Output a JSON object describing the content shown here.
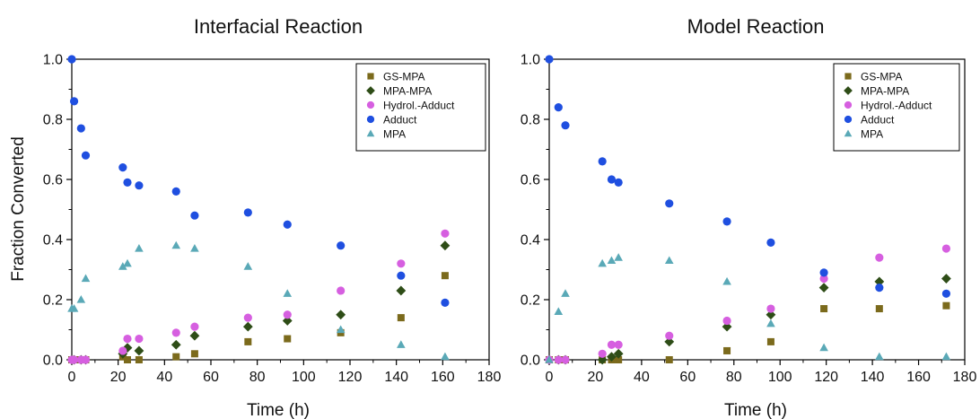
{
  "shared": {
    "ylabel": "Fraction Converted"
  },
  "chart_data": [
    {
      "type": "scatter",
      "title": "Interfacial Reaction",
      "xlabel": "Time (h)",
      "ylabel": "Fraction Converted",
      "xlim": [
        0,
        180
      ],
      "ylim": [
        0,
        1.0
      ],
      "xticks": [
        "0",
        "20",
        "40",
        "60",
        "80",
        "100",
        "120",
        "140",
        "160",
        "180"
      ],
      "yticks": [
        "0.0",
        "0.2",
        "0.4",
        "0.6",
        "0.8",
        "1.0"
      ],
      "grid": false,
      "legend": "top-right",
      "series": [
        {
          "name": "GS-MPA",
          "marker": "square",
          "color": "#7b6a1c",
          "x": [
            0,
            1,
            4,
            6,
            22,
            24,
            29,
            45,
            53,
            76,
            93,
            116,
            142,
            161
          ],
          "y": [
            0,
            0,
            0,
            0,
            0.01,
            0.0,
            0.0,
            0.01,
            0.02,
            0.06,
            0.07,
            0.09,
            0.14,
            0.28
          ]
        },
        {
          "name": "MPA-MPA",
          "marker": "diamond",
          "color": "#2e4d17",
          "x": [
            0,
            1,
            4,
            6,
            22,
            24,
            29,
            45,
            53,
            76,
            93,
            116,
            142,
            161
          ],
          "y": [
            0,
            0,
            0,
            0,
            0.02,
            0.04,
            0.03,
            0.05,
            0.08,
            0.11,
            0.13,
            0.15,
            0.23,
            0.38
          ]
        },
        {
          "name": "Hydrol.-Adduct",
          "marker": "circle",
          "color": "#d65fe0",
          "x": [
            0,
            1,
            4,
            6,
            22,
            24,
            29,
            45,
            53,
            76,
            93,
            116,
            142,
            161
          ],
          "y": [
            0,
            0,
            0,
            0,
            0.03,
            0.07,
            0.07,
            0.09,
            0.11,
            0.14,
            0.15,
            0.23,
            0.32,
            0.42
          ]
        },
        {
          "name": "Adduct",
          "marker": "circle",
          "color": "#1f4fe0",
          "x": [
            0,
            1,
            4,
            6,
            22,
            24,
            29,
            45,
            53,
            76,
            93,
            116,
            142,
            161
          ],
          "y": [
            1.0,
            0.86,
            0.77,
            0.68,
            0.64,
            0.59,
            0.58,
            0.56,
            0.48,
            0.49,
            0.45,
            0.38,
            0.28,
            0.19
          ]
        },
        {
          "name": "MPA",
          "marker": "triangle",
          "color": "#5aa9b7",
          "x": [
            0,
            1,
            4,
            6,
            22,
            24,
            29,
            45,
            53,
            76,
            93,
            116,
            142,
            161
          ],
          "y": [
            0.17,
            0.17,
            0.2,
            0.27,
            0.31,
            0.32,
            0.37,
            0.38,
            0.37,
            0.31,
            0.22,
            0.1,
            0.05,
            0.01
          ]
        }
      ]
    },
    {
      "type": "scatter",
      "title": "Model Reaction",
      "xlabel": "Time (h)",
      "ylabel": "",
      "xlim": [
        0,
        180
      ],
      "ylim": [
        0,
        1.0
      ],
      "xticks": [
        "0",
        "20",
        "40",
        "60",
        "80",
        "100",
        "120",
        "140",
        "160",
        "180"
      ],
      "yticks": [
        "0.0",
        "0.2",
        "0.4",
        "0.6",
        "0.8",
        "1.0"
      ],
      "grid": false,
      "legend": "top-right",
      "series": [
        {
          "name": "GS-MPA",
          "marker": "square",
          "color": "#7b6a1c",
          "x": [
            0,
            4,
            7,
            23,
            27,
            30,
            52,
            77,
            96,
            119,
            143,
            172
          ],
          "y": [
            0,
            0,
            0,
            0,
            0,
            0,
            0,
            0.03,
            0.06,
            0.17,
            0.17,
            0.18
          ]
        },
        {
          "name": "MPA-MPA",
          "marker": "diamond",
          "color": "#2e4d17",
          "x": [
            0,
            4,
            7,
            23,
            27,
            30,
            52,
            77,
            96,
            119,
            143,
            172
          ],
          "y": [
            0,
            0,
            0,
            0.0,
            0.01,
            0.02,
            0.06,
            0.11,
            0.15,
            0.24,
            0.26,
            0.27
          ]
        },
        {
          "name": "Hydrol.-Adduct",
          "marker": "circle",
          "color": "#d65fe0",
          "x": [
            0,
            4,
            7,
            23,
            27,
            30,
            52,
            77,
            96,
            119,
            143,
            172
          ],
          "y": [
            0,
            0,
            0,
            0.02,
            0.05,
            0.05,
            0.08,
            0.13,
            0.17,
            0.27,
            0.34,
            0.37
          ]
        },
        {
          "name": "Adduct",
          "marker": "circle",
          "color": "#1f4fe0",
          "x": [
            0,
            4,
            7,
            23,
            27,
            30,
            52,
            77,
            96,
            119,
            143,
            172
          ],
          "y": [
            1.0,
            0.84,
            0.78,
            0.66,
            0.6,
            0.59,
            0.52,
            0.46,
            0.39,
            0.29,
            0.24,
            0.22
          ]
        },
        {
          "name": "MPA",
          "marker": "triangle",
          "color": "#5aa9b7",
          "x": [
            0,
            4,
            7,
            23,
            27,
            30,
            52,
            77,
            96,
            119,
            143,
            172
          ],
          "y": [
            0,
            0.16,
            0.22,
            0.32,
            0.33,
            0.34,
            0.33,
            0.26,
            0.12,
            0.04,
            0.01,
            0.01
          ]
        }
      ]
    }
  ]
}
